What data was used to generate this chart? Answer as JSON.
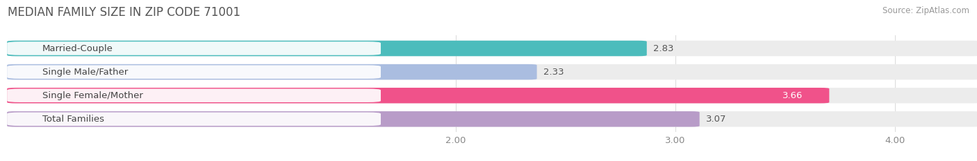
{
  "title": "MEDIAN FAMILY SIZE IN ZIP CODE 71001",
  "source": "Source: ZipAtlas.com",
  "categories": [
    "Married-Couple",
    "Single Male/Father",
    "Single Female/Mother",
    "Total Families"
  ],
  "values": [
    2.83,
    2.33,
    3.66,
    3.07
  ],
  "bar_colors": [
    "#4CBCBC",
    "#AABDE0",
    "#F0528A",
    "#B89CC8"
  ],
  "bar_bg_color": "#ECECEC",
  "value_label_colors": [
    "#555555",
    "#555555",
    "#ffffff",
    "#555555"
  ],
  "xmin": 0.0,
  "xlim_left": -0.05,
  "xlim_right": 4.35,
  "xticks": [
    2.0,
    3.0,
    4.0
  ],
  "xtick_labels": [
    "2.00",
    "3.00",
    "4.00"
  ],
  "bar_height": 0.58,
  "label_fontsize": 9.5,
  "value_fontsize": 9.5,
  "title_fontsize": 12,
  "source_fontsize": 8.5,
  "background_color": "#FFFFFF",
  "label_box_color": "#FFFFFF",
  "label_text_color": "#444444",
  "grid_color": "#DDDDDD"
}
